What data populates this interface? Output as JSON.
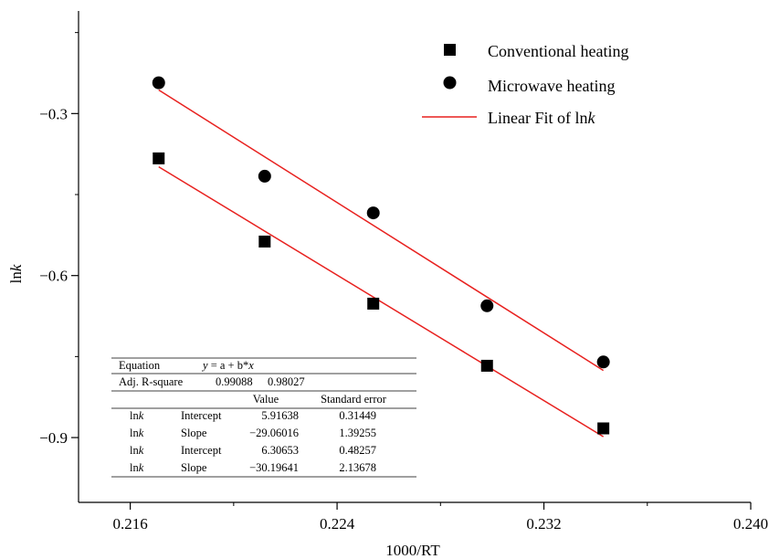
{
  "chart_data": {
    "type": "scatter",
    "xlabel": "1000/RT",
    "ylabel_parts": [
      "ln",
      "k"
    ],
    "xlim": [
      0.214,
      0.24
    ],
    "ylim": [
      -1.02,
      -0.11
    ],
    "x_ticks": [
      0.216,
      0.224,
      0.232,
      0.24
    ],
    "x_tick_labels": [
      "0.216",
      "0.224",
      "0.232",
      "0.240"
    ],
    "x_minor_ticks": [
      0.22,
      0.228,
      0.236
    ],
    "y_ticks": [
      -0.3,
      -0.6,
      -0.9
    ],
    "y_tick_labels": [
      "−0.3",
      "−0.6",
      "−0.9"
    ],
    "y_minor_ticks": [
      -0.15,
      -0.45,
      -0.75
    ],
    "series": [
      {
        "name": "Conventional heating",
        "marker": "square",
        "color": "#000000",
        "x": [
          0.2171,
          0.2212,
          0.2254,
          0.2298,
          0.2343
        ],
        "y": [
          -0.383,
          -0.537,
          -0.652,
          -0.767,
          -0.883
        ]
      },
      {
        "name": "Microwave heating",
        "marker": "circle",
        "color": "#000000",
        "x": [
          0.2171,
          0.2212,
          0.2254,
          0.2298,
          0.2343
        ],
        "y": [
          -0.243,
          -0.416,
          -0.484,
          -0.656,
          -0.76
        ]
      }
    ],
    "fits": [
      {
        "intercept": 5.91638,
        "slope": -29.06016,
        "x_range": [
          0.2171,
          0.2343
        ],
        "color": "#e8211f"
      },
      {
        "intercept": 6.30653,
        "slope": -30.19641,
        "x_range": [
          0.2171,
          0.2343
        ],
        "color": "#e8211f"
      }
    ],
    "legend": {
      "position": "top-right",
      "items": [
        {
          "marker": "square",
          "label": "Conventional heating"
        },
        {
          "marker": "circle",
          "label": "Microwave heating"
        },
        {
          "marker": "line",
          "label_parts": [
            "Linear Fit of ln",
            "k"
          ]
        }
      ]
    },
    "fit_table": {
      "equation_label": "Equation",
      "equation_parts": [
        "y",
        " = a + b*",
        "x"
      ],
      "adj_r_label": "Adj. R-square",
      "adj_r_values": [
        "0.99088",
        "0.98027"
      ],
      "col_headers": [
        "Value",
        "Standard error"
      ],
      "rows": [
        {
          "name_parts": [
            "ln",
            "k"
          ],
          "param": "Intercept",
          "value": "5.91638",
          "error": "0.31449"
        },
        {
          "name_parts": [
            "ln",
            "k"
          ],
          "param": "Slope",
          "value": "−29.06016",
          "error": "1.39255"
        },
        {
          "name_parts": [
            "ln",
            "k"
          ],
          "param": "Intercept",
          "value": "6.30653",
          "error": "0.48257"
        },
        {
          "name_parts": [
            "ln",
            "k"
          ],
          "param": "Slope",
          "value": "−30.19641",
          "error": "2.13678"
        }
      ]
    }
  }
}
